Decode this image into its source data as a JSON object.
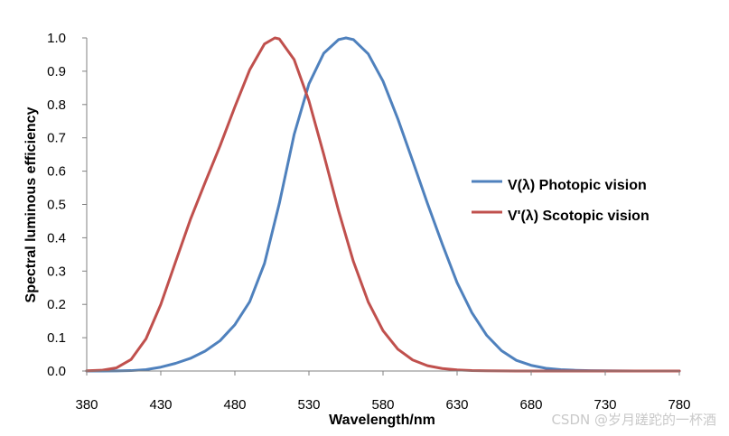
{
  "watermark": "CSDN @岁月蹉跎的一杯酒",
  "chart_data": {
    "type": "line",
    "xlabel": "Wavelength/nm",
    "ylabel": "Spectral luminous efficiency",
    "xlim": [
      380,
      780
    ],
    "ylim": [
      0,
      1
    ],
    "x_ticks": [
      "380",
      "430",
      "480",
      "530",
      "580",
      "630",
      "680",
      "730",
      "780"
    ],
    "y_ticks": [
      "0.0",
      "0.1",
      "0.2",
      "0.3",
      "0.4",
      "0.5",
      "0.6",
      "0.7",
      "0.8",
      "0.9",
      "1.0"
    ],
    "legend_position": "right",
    "grid": false,
    "series": [
      {
        "name": "V(λ) Photopic vision",
        "color": "#4f81bd",
        "x": [
          380,
          390,
          400,
          410,
          420,
          430,
          440,
          450,
          460,
          470,
          480,
          490,
          500,
          510,
          520,
          530,
          540,
          550,
          555,
          560,
          570,
          580,
          590,
          600,
          610,
          620,
          630,
          640,
          650,
          660,
          670,
          680,
          690,
          700,
          710,
          720,
          730,
          740,
          750,
          760,
          770,
          780
        ],
        "y": [
          0.0,
          0.0001,
          0.0004,
          0.0012,
          0.004,
          0.0116,
          0.023,
          0.038,
          0.06,
          0.091,
          0.139,
          0.208,
          0.323,
          0.503,
          0.71,
          0.862,
          0.954,
          0.995,
          1.0,
          0.995,
          0.952,
          0.87,
          0.757,
          0.631,
          0.503,
          0.381,
          0.265,
          0.175,
          0.107,
          0.061,
          0.032,
          0.017,
          0.0082,
          0.0041,
          0.0021,
          0.00105,
          0.00052,
          0.00025,
          0.00012,
          6e-05,
          3e-05,
          1.5e-05
        ]
      },
      {
        "name": "V'(λ) Scotopic vision",
        "color": "#c0504d",
        "x": [
          380,
          390,
          400,
          410,
          420,
          430,
          440,
          450,
          460,
          470,
          480,
          490,
          500,
          507,
          510,
          520,
          530,
          540,
          550,
          560,
          570,
          580,
          590,
          600,
          610,
          620,
          630,
          640,
          650,
          660,
          670,
          680,
          690,
          700,
          710,
          720,
          730,
          740,
          750,
          760,
          770,
          780
        ],
        "y": [
          0.000589,
          0.002209,
          0.00929,
          0.03484,
          0.0966,
          0.1998,
          0.3281,
          0.455,
          0.567,
          0.676,
          0.793,
          0.904,
          0.982,
          1.0,
          0.997,
          0.935,
          0.811,
          0.65,
          0.481,
          0.3288,
          0.2076,
          0.1212,
          0.0655,
          0.03315,
          0.01593,
          0.00737,
          0.003335,
          0.001497,
          0.000677,
          0.000313,
          0.000148,
          7.15e-05,
          3.53e-05,
          1.78e-05,
          9.1e-06,
          4.8e-06,
          2.5e-06,
          1.4e-06,
          8e-07,
          4e-07,
          3e-07,
          2e-07
        ]
      }
    ]
  }
}
